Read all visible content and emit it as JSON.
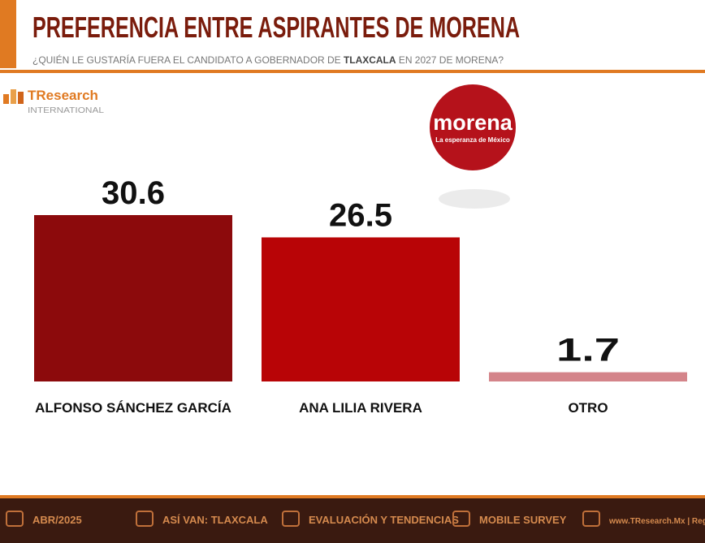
{
  "chart_data": {
    "type": "bar",
    "title": "PREFERENCIA ENTRE ASPIRANTES DE MORENA",
    "subtitle": [
      "¿QUIÉN LE GUSTARÍA FUERA EL CANDIDATO A GOBERNADOR DE ",
      "TLAXCALA",
      " EN 2027 DE MORENA?"
    ],
    "categories": [
      "ALFONSO SÁNCHEZ GARCÍA",
      "ANA LILIA RIVERA",
      "OTRO"
    ],
    "values": [
      30.6,
      26.5,
      1.7
    ],
    "colors": [
      "#8c0a0c",
      "#b80406",
      "#d4848a"
    ]
  },
  "logos": {
    "tresearch": "TResearch",
    "tresearch_sub": "INTERNATIONAL",
    "morena": "morena",
    "morena_sub": "La esperanza de México"
  },
  "footer": [
    "ABR/2025",
    "ASÍ VAN: TLAXCALA",
    "EVALUACIÓN Y TENDENCIAS",
    "MOBILE SURVEY",
    "www.TResearch.Mx | Regi"
  ]
}
